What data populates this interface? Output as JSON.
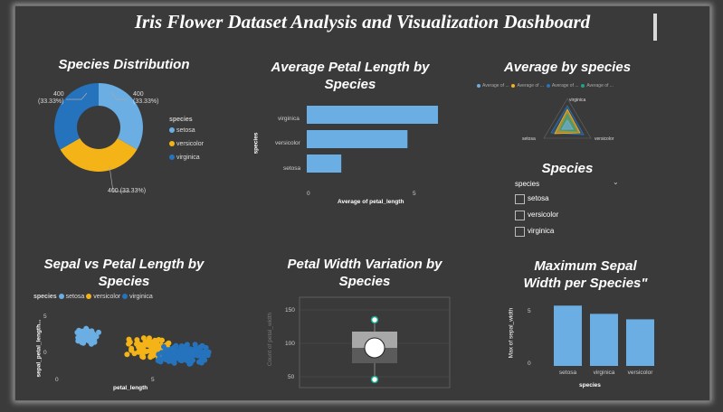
{
  "title": "Iris Flower Dataset Analysis and Visualization Dashboard",
  "colors": {
    "setosa": "#6aaee4",
    "versicolor": "#f4b317",
    "virginica": "#2673bd",
    "teal": "#1aa58b",
    "bar": "#6aaee4"
  },
  "donut": {
    "title": "Species Distribution",
    "legend_title": "species",
    "labels": [
      "400\n(33.33%)",
      "400\n(33.33%)",
      "400 (33.33%)"
    ],
    "label_tl_1": "400",
    "label_tl_2": "(33.33%)",
    "label_tr_1": "400",
    "label_tr_2": "(33.33%)",
    "label_b": "400 (33.33%)",
    "legend": [
      "setosa",
      "versicolor",
      "virginica"
    ]
  },
  "petal_bar": {
    "title_1": "Average Petal Length by",
    "title_2": "Species",
    "ylabel": "species",
    "xlabel": "Average of petal_length",
    "x_ticks": [
      "0",
      "5"
    ]
  },
  "radar": {
    "title": "Average by species",
    "legend": [
      "Average of ...",
      "Average of ...",
      "Average of ...",
      "Average of ..."
    ],
    "axes": [
      "virginica",
      "setosa",
      "versicolor"
    ]
  },
  "slicer": {
    "title": "Species",
    "header": "species",
    "options": [
      "setosa",
      "versicolor",
      "virginica"
    ]
  },
  "scatter": {
    "title_1": "Sepal vs Petal Length by",
    "title_2": "Species",
    "legend_title": "species",
    "legend": [
      "setosa",
      "versicolor",
      "virginica"
    ],
    "ylabel": "sepal_petal_length...",
    "xlabel": "petal_length",
    "y_ticks": [
      "5",
      "0"
    ],
    "x_ticks": [
      "0",
      "5"
    ]
  },
  "box": {
    "title_1": "Petal Width Variation by",
    "title_2": "Species",
    "ylabel": "Count of petal_width",
    "y_ticks": [
      "150",
      "100",
      "50"
    ]
  },
  "sepal_bar": {
    "title_1": "Maximum Sepal",
    "title_2": "Width per Species\"",
    "ylabel": "Max of sepal_width",
    "xlabel": "species",
    "y_ticks": [
      "5",
      "0"
    ]
  },
  "chart_data": [
    {
      "type": "pie",
      "title": "Species Distribution",
      "categories": [
        "setosa",
        "versicolor",
        "virginica"
      ],
      "values": [
        400,
        400,
        400
      ]
    },
    {
      "type": "bar",
      "title": "Average Petal Length by Species",
      "categories": [
        "virginica",
        "versicolor",
        "setosa"
      ],
      "values": [
        5.55,
        4.26,
        1.46
      ],
      "xlabel": "Average of petal_length",
      "ylabel": "species",
      "xlim": [
        0,
        6.2
      ]
    },
    {
      "type": "scatter",
      "title": "Sepal vs Petal Length by Species",
      "xlabel": "petal_length",
      "ylabel": "sepal_petal_length...",
      "series": [
        {
          "name": "setosa"
        },
        {
          "name": "versicolor"
        },
        {
          "name": "virginica"
        }
      ]
    },
    {
      "type": "bar",
      "title": "Maximum Sepal Width per Species\"",
      "categories": [
        "setosa",
        "virginica",
        "versicolor"
      ],
      "values": [
        4.4,
        3.8,
        3.4
      ],
      "xlabel": "species",
      "ylabel": "Max of sepal_width",
      "ylim": [
        0,
        6.5
      ]
    }
  ]
}
